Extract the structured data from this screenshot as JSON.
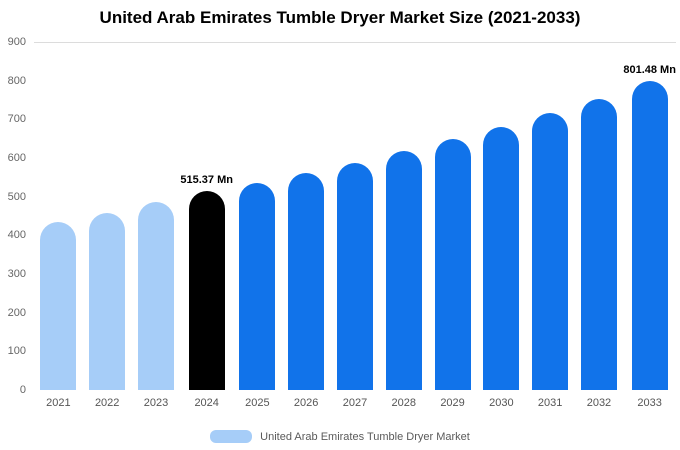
{
  "title": "United Arab Emirates Tumble Dryer Market Size (2021-2033)",
  "legend": {
    "label": "United Arab Emirates Tumble Dryer Market",
    "swatch_color": "#a6cdf8"
  },
  "colors": {
    "historical_bar": "#a6cdf8",
    "base_year_bar": "#000000",
    "forecast_bar": "#1173ea",
    "axis_text": "#666666",
    "title_text": "#000000"
  },
  "chart_data": {
    "type": "bar",
    "title": "United Arab Emirates Tumble Dryer Market Size (2021-2033)",
    "categories": [
      "2021",
      "2022",
      "2023",
      "2024",
      "2025",
      "2026",
      "2027",
      "2028",
      "2029",
      "2030",
      "2031",
      "2032",
      "2033"
    ],
    "values": [
      435,
      460,
      487,
      515.37,
      538,
      563,
      590,
      619,
      650,
      683,
      718,
      756,
      801.48
    ],
    "unit": "Mn",
    "xlabel": "",
    "ylabel": "",
    "ylim": [
      0,
      900
    ],
    "yticks": [
      0,
      100,
      200,
      300,
      400,
      500,
      600,
      700,
      800,
      900
    ],
    "grid": false,
    "legend_position": "bottom",
    "bar_colors": [
      "#a6cdf8",
      "#a6cdf8",
      "#a6cdf8",
      "#000000",
      "#1173ea",
      "#1173ea",
      "#1173ea",
      "#1173ea",
      "#1173ea",
      "#1173ea",
      "#1173ea",
      "#1173ea",
      "#1173ea"
    ],
    "data_labels": {
      "2024": "515.37 Mn",
      "2033": "801.48 Mn"
    }
  }
}
